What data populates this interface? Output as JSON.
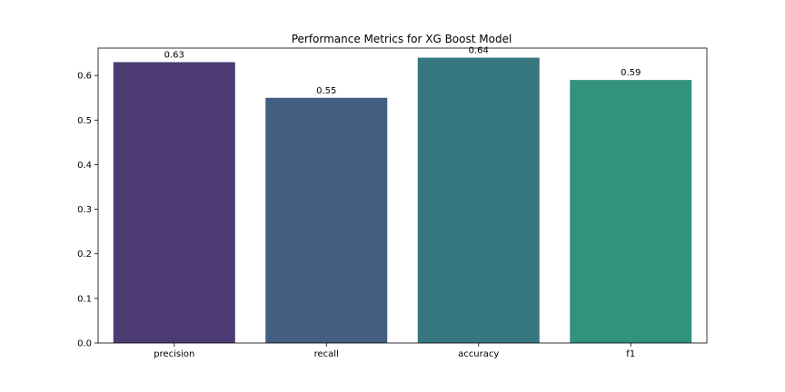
{
  "chart_data": {
    "type": "bar",
    "title": "Performance Metrics for XG Boost Model",
    "xlabel": "",
    "ylabel": "",
    "categories": [
      "precision",
      "recall",
      "accuracy",
      "f1"
    ],
    "values": [
      0.63,
      0.55,
      0.64,
      0.59
    ],
    "data_labels": [
      "0.63",
      "0.55",
      "0.64",
      "0.59"
    ],
    "colors": [
      "#4b3b72",
      "#425f82",
      "#36777f",
      "#32927d"
    ],
    "ylim": [
      0,
      0.6615
    ],
    "yticks": [
      0.0,
      0.1,
      0.2,
      0.3,
      0.4,
      0.5,
      0.6
    ],
    "ytick_labels": [
      "0.0",
      "0.1",
      "0.2",
      "0.3",
      "0.4",
      "0.5",
      "0.6"
    ],
    "grid": false,
    "legend": "none"
  }
}
